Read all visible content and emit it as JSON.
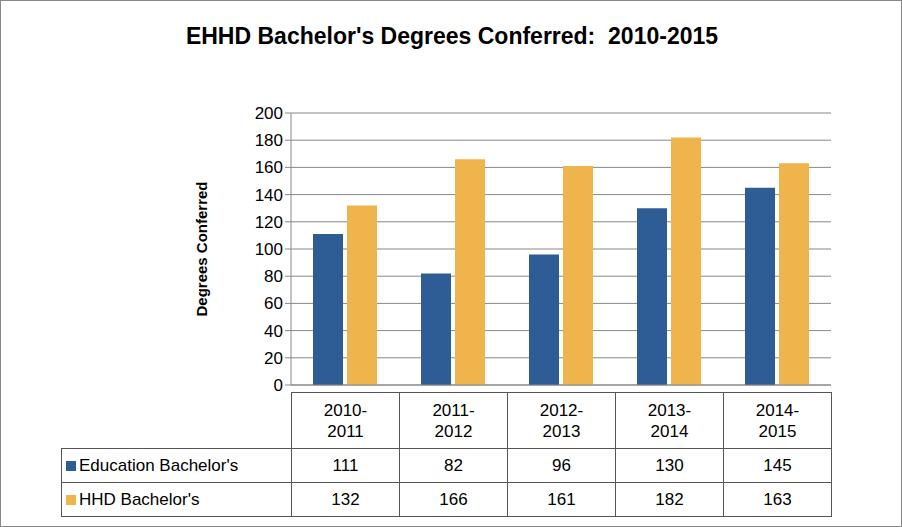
{
  "chart_data": {
    "type": "bar",
    "title": "EHHD Bachelor's Degrees Conferred:  2010-2015",
    "y_label": "Degrees Conferred",
    "categories": [
      "2010-2011",
      "2011-2012",
      "2012-2013",
      "2013-2014",
      "2014-2015"
    ],
    "series": [
      {
        "name": "Education Bachelor's",
        "color": "#2e5c94",
        "values": [
          111,
          82,
          96,
          130,
          145
        ]
      },
      {
        "name": "HHD Bachelor's",
        "color": "#f0b44c",
        "values": [
          132,
          166,
          161,
          182,
          163
        ]
      }
    ],
    "ylim": [
      0,
      200
    ],
    "yticks": [
      0,
      20,
      40,
      60,
      80,
      100,
      120,
      140,
      160,
      180,
      200
    ],
    "grid": true
  }
}
